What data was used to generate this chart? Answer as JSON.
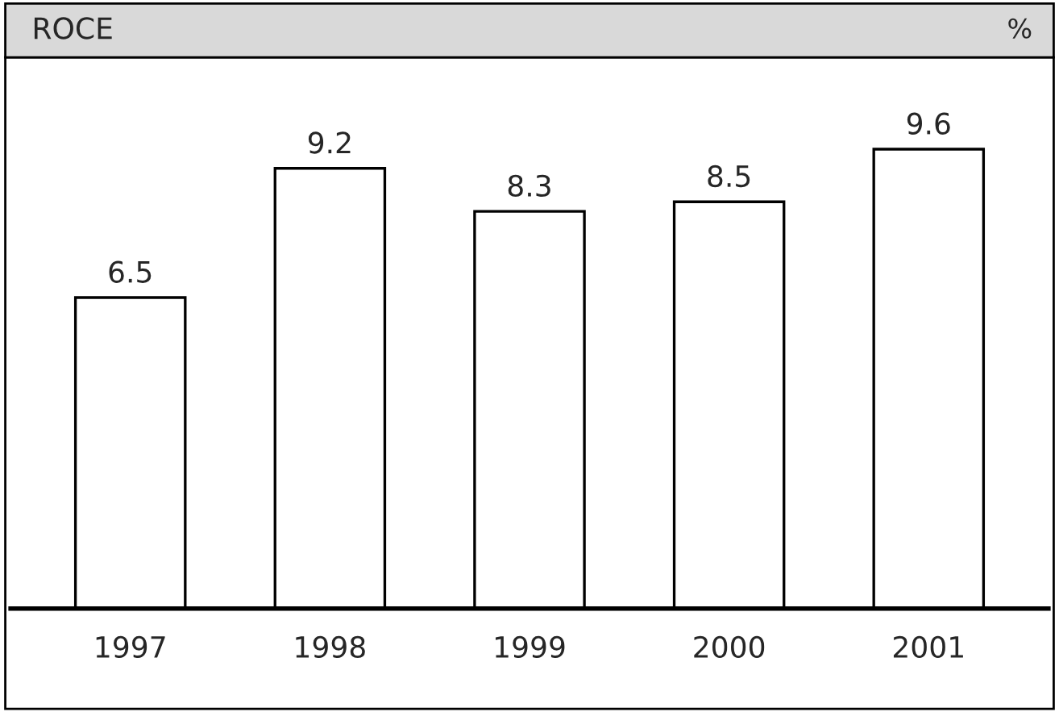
{
  "chart_data": {
    "type": "bar",
    "title": "ROCE",
    "ylabel": "%",
    "categories": [
      "1997",
      "1998",
      "1999",
      "2000",
      "2001"
    ],
    "values": [
      6.5,
      9.2,
      8.3,
      8.5,
      9.6
    ],
    "color": "#ffffff",
    "data_labels": true,
    "grid": false,
    "legend": false
  }
}
